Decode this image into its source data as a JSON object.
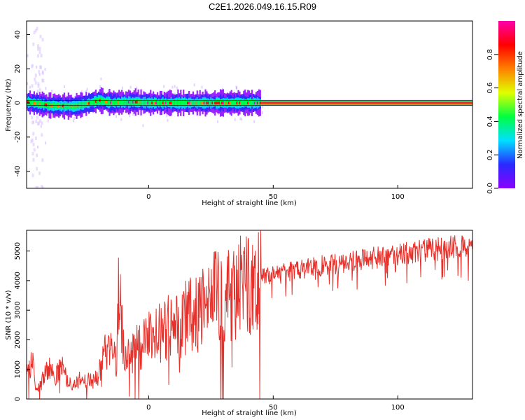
{
  "title": "C2E1.2026.049.16.15.R09",
  "colors": {
    "snr_line": "#e8302a",
    "trace_core": "#e02a2a",
    "colorbar_stops": [
      "#8a00ff",
      "#2a2aff",
      "#00e0ff",
      "#00ff40",
      "#e0ff00",
      "#ff8000",
      "#ff0000",
      "#ff00aa"
    ]
  },
  "chart_data": [
    {
      "type": "heatmap",
      "title": "",
      "xlabel": "Height of straight line (km)",
      "ylabel": "Frequency (Hz)",
      "xlim": [
        -49,
        130
      ],
      "ylim": [
        -50,
        48
      ],
      "xticks": [
        "0",
        "50",
        "100"
      ],
      "xtick_values": [
        0,
        50,
        100
      ],
      "yticks": [
        "40",
        "20",
        "0",
        "-20",
        "-40"
      ],
      "ytick_values": [
        40,
        20,
        0,
        -20,
        -40
      ],
      "colorbar": {
        "label": "Normalized spectral amplitude",
        "ticks": [
          "0.0",
          "0.2",
          "0.4",
          "0.6",
          "0.8"
        ],
        "tick_values": [
          0,
          0.2,
          0.4,
          0.6,
          0.8
        ],
        "range": [
          0,
          1
        ]
      },
      "ridge": {
        "x": [
          -49,
          -40,
          -30,
          -25,
          -20,
          -15,
          -10,
          -5,
          0,
          10,
          20,
          30,
          40,
          45,
          60,
          80,
          100,
          120,
          130
        ],
        "y": [
          0.5,
          -1.5,
          -2,
          -0.5,
          1.5,
          0,
          0.5,
          0.5,
          0,
          0,
          0,
          0,
          0,
          0,
          0,
          0,
          0,
          0,
          0
        ]
      }
    },
    {
      "type": "line",
      "title": "",
      "xlabel": "Height of straight line (km)",
      "ylabel": "SNR (10 * v/v)",
      "xlim": [
        -49,
        130
      ],
      "ylim": [
        0,
        5700
      ],
      "xticks": [
        "0",
        "50",
        "100"
      ],
      "xtick_values": [
        0,
        50,
        100
      ],
      "yticks": [
        "0",
        "1000",
        "2000",
        "3000",
        "4000",
        "5000"
      ],
      "ytick_values": [
        0,
        1000,
        2000,
        3000,
        4000,
        5000
      ],
      "series": [
        {
          "x": [
            -49,
            -47,
            -45,
            -43,
            -40,
            -37,
            -35,
            -33,
            -30,
            -27,
            -25,
            -22,
            -20,
            -18,
            -15,
            -13,
            -12,
            -10,
            -7,
            -5,
            -3,
            0,
            3,
            5,
            8,
            10,
            13,
            15,
            18,
            20,
            23,
            25,
            28,
            30,
            33,
            35,
            38,
            40,
            43,
            45,
            48,
            50,
            55,
            60,
            65,
            70,
            75,
            80,
            85,
            90,
            95,
            100,
            105,
            110,
            115,
            120,
            125,
            130
          ],
          "values": [
            1000,
            1400,
            300,
            600,
            1100,
            800,
            1200,
            700,
            500,
            800,
            700,
            600,
            900,
            1500,
            1800,
            1300,
            3900,
            1600,
            1500,
            1800,
            1900,
            2100,
            2200,
            2400,
            2600,
            2700,
            2700,
            2900,
            3000,
            3100,
            3300,
            3500,
            3600,
            3700,
            3800,
            3900,
            4000,
            4000,
            4100,
            4150,
            4200,
            4200,
            4300,
            4400,
            4500,
            4550,
            4600,
            4700,
            4750,
            4800,
            4850,
            4900,
            5000,
            5050,
            5100,
            5150,
            5250,
            5300
          ]
        }
      ]
    }
  ]
}
